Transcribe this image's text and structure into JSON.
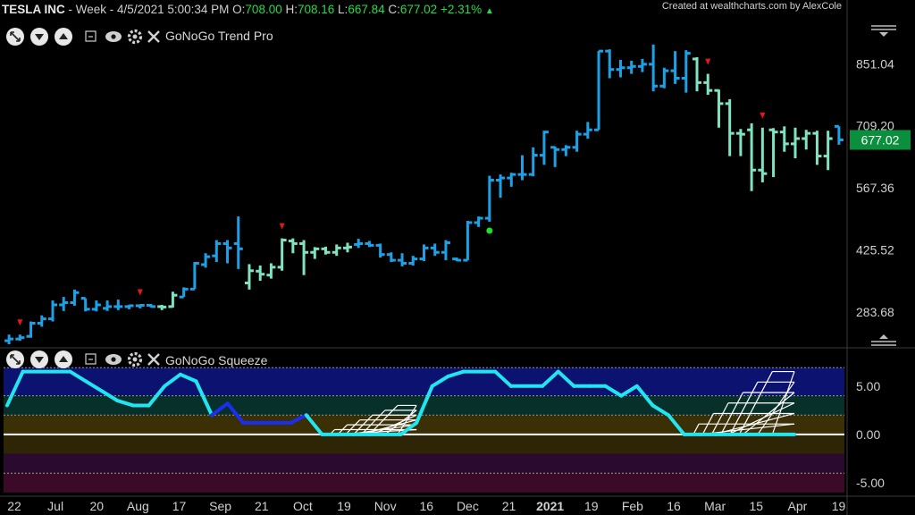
{
  "header": {
    "symbol": "TESLA INC",
    "interval": "Week",
    "datetime": "4/5/2021 5:00:34 PM",
    "open_label": "O:",
    "open": "708.00",
    "high_label": "H:",
    "high": "708.16",
    "low_label": "L:",
    "low": "667.84",
    "close_label": "C:",
    "close": "677.02",
    "change": "+2.31%",
    "change_icon": "triangle-up-icon"
  },
  "credit": "Created at wealthcharts.com by AlexCole",
  "panels": {
    "trend": {
      "title": "GoNoGo Trend Pro"
    },
    "squeeze": {
      "title": "GoNoGo Squeeze"
    }
  },
  "colors": {
    "background": "#000000",
    "go_strong": "#1da1e6",
    "go_weak": "#7fe3c1",
    "squeeze_line": "#21e6f0",
    "squeeze_low": "#1a2ef0",
    "last_price_bg": "#0a8f3c",
    "down_arrow": "#e51919",
    "dot": "#21e021"
  },
  "chart_data": [
    {
      "type": "ohlc",
      "interval": "Week",
      "ylim": [
        210,
        960
      ],
      "y_ticks": [
        "851.04",
        "709.20",
        "567.36",
        "425.52",
        "283.68"
      ],
      "last_price": "677.02",
      "x_ticks": [
        "22",
        "Jul",
        "20",
        "Aug",
        "17",
        "Sep",
        "21",
        "Oct",
        "19",
        "Nov",
        "16",
        "Dec",
        "21",
        "2021",
        "19",
        "Feb",
        "16",
        "Mar",
        "15",
        "Apr",
        "19"
      ],
      "bars": [
        {
          "o": 218,
          "h": 232,
          "l": 210,
          "c": 222,
          "color": "go_strong"
        },
        {
          "o": 222,
          "h": 232,
          "l": 218,
          "c": 225,
          "color": "go_strong"
        },
        {
          "o": 228,
          "h": 262,
          "l": 225,
          "c": 258,
          "color": "go_strong"
        },
        {
          "o": 258,
          "h": 276,
          "l": 250,
          "c": 268,
          "color": "go_strong"
        },
        {
          "o": 268,
          "h": 310,
          "l": 262,
          "c": 300,
          "color": "go_strong"
        },
        {
          "o": 300,
          "h": 318,
          "l": 286,
          "c": 305,
          "color": "go_strong"
        },
        {
          "o": 305,
          "h": 335,
          "l": 298,
          "c": 328,
          "color": "go_strong"
        },
        {
          "o": 315,
          "h": 315,
          "l": 285,
          "c": 290,
          "color": "go_strong"
        },
        {
          "o": 290,
          "h": 310,
          "l": 285,
          "c": 300,
          "color": "go_strong"
        },
        {
          "o": 292,
          "h": 310,
          "l": 286,
          "c": 296,
          "color": "go_strong"
        },
        {
          "o": 296,
          "h": 312,
          "l": 288,
          "c": 296,
          "color": "go_strong"
        },
        {
          "o": 296,
          "h": 300,
          "l": 290,
          "c": 298,
          "color": "go_strong"
        },
        {
          "o": 298,
          "h": 301,
          "l": 292,
          "c": 299,
          "color": "go_strong"
        },
        {
          "o": 299,
          "h": 302,
          "l": 294,
          "c": 296,
          "color": "go_strong"
        },
        {
          "o": 296,
          "h": 300,
          "l": 288,
          "c": 295,
          "color": "go_weak"
        },
        {
          "o": 296,
          "h": 330,
          "l": 294,
          "c": 322,
          "color": "go_weak"
        },
        {
          "o": 318,
          "h": 340,
          "l": 318,
          "c": 336,
          "color": "go_strong"
        },
        {
          "o": 336,
          "h": 398,
          "l": 336,
          "c": 395,
          "color": "go_strong"
        },
        {
          "o": 392,
          "h": 418,
          "l": 385,
          "c": 410,
          "color": "go_strong"
        },
        {
          "o": 412,
          "h": 448,
          "l": 398,
          "c": 440,
          "color": "go_strong"
        },
        {
          "o": 440,
          "h": 448,
          "l": 395,
          "c": 430,
          "color": "go_strong"
        },
        {
          "o": 440,
          "h": 502,
          "l": 382,
          "c": 428,
          "color": "go_strong"
        },
        {
          "o": 350,
          "h": 393,
          "l": 335,
          "c": 378,
          "color": "go_weak"
        },
        {
          "o": 377,
          "h": 390,
          "l": 355,
          "c": 370,
          "color": "go_weak"
        },
        {
          "o": 368,
          "h": 395,
          "l": 360,
          "c": 386,
          "color": "go_weak"
        },
        {
          "o": 386,
          "h": 452,
          "l": 378,
          "c": 448,
          "color": "go_weak"
        },
        {
          "o": 446,
          "h": 452,
          "l": 418,
          "c": 440,
          "color": "go_weak"
        },
        {
          "o": 440,
          "h": 448,
          "l": 368,
          "c": 420,
          "color": "go_weak"
        },
        {
          "o": 420,
          "h": 432,
          "l": 405,
          "c": 428,
          "color": "go_weak"
        },
        {
          "o": 428,
          "h": 433,
          "l": 415,
          "c": 420,
          "color": "go_weak"
        },
        {
          "o": 420,
          "h": 438,
          "l": 412,
          "c": 430,
          "color": "go_weak"
        },
        {
          "o": 430,
          "h": 442,
          "l": 420,
          "c": 432,
          "color": "go_weak"
        },
        {
          "o": 438,
          "h": 451,
          "l": 430,
          "c": 440,
          "color": "go_strong"
        },
        {
          "o": 440,
          "h": 446,
          "l": 432,
          "c": 436,
          "color": "go_strong"
        },
        {
          "o": 436,
          "h": 440,
          "l": 408,
          "c": 415,
          "color": "go_strong"
        },
        {
          "o": 415,
          "h": 420,
          "l": 398,
          "c": 402,
          "color": "go_strong"
        },
        {
          "o": 402,
          "h": 418,
          "l": 388,
          "c": 395,
          "color": "go_strong"
        },
        {
          "o": 395,
          "h": 412,
          "l": 390,
          "c": 405,
          "color": "go_strong"
        },
        {
          "o": 405,
          "h": 438,
          "l": 400,
          "c": 430,
          "color": "go_strong"
        },
        {
          "o": 430,
          "h": 440,
          "l": 412,
          "c": 420,
          "color": "go_strong"
        },
        {
          "o": 420,
          "h": 448,
          "l": 402,
          "c": 442,
          "color": "go_strong"
        },
        {
          "o": 405,
          "h": 408,
          "l": 400,
          "c": 402,
          "color": "go_strong"
        },
        {
          "o": 402,
          "h": 492,
          "l": 402,
          "c": 488,
          "color": "go_strong"
        },
        {
          "o": 488,
          "h": 502,
          "l": 478,
          "c": 498,
          "color": "go_strong"
        },
        {
          "o": 498,
          "h": 595,
          "l": 490,
          "c": 585,
          "color": "go_strong"
        },
        {
          "o": 585,
          "h": 598,
          "l": 545,
          "c": 590,
          "color": "go_strong"
        },
        {
          "o": 590,
          "h": 602,
          "l": 570,
          "c": 598,
          "color": "go_strong"
        },
        {
          "o": 598,
          "h": 642,
          "l": 585,
          "c": 598,
          "color": "go_strong"
        },
        {
          "o": 598,
          "h": 660,
          "l": 594,
          "c": 642,
          "color": "go_strong"
        },
        {
          "o": 642,
          "h": 698,
          "l": 620,
          "c": 695,
          "color": "go_strong"
        },
        {
          "o": 660,
          "h": 662,
          "l": 615,
          "c": 655,
          "color": "go_strong"
        },
        {
          "o": 655,
          "h": 665,
          "l": 640,
          "c": 660,
          "color": "go_strong"
        },
        {
          "o": 660,
          "h": 698,
          "l": 650,
          "c": 690,
          "color": "go_strong"
        },
        {
          "o": 690,
          "h": 718,
          "l": 680,
          "c": 700,
          "color": "go_strong"
        },
        {
          "o": 700,
          "h": 880,
          "l": 700,
          "c": 880,
          "color": "go_strong"
        },
        {
          "o": 880,
          "h": 884,
          "l": 818,
          "c": 838,
          "color": "go_strong"
        },
        {
          "o": 838,
          "h": 860,
          "l": 820,
          "c": 842,
          "color": "go_strong"
        },
        {
          "o": 842,
          "h": 858,
          "l": 828,
          "c": 845,
          "color": "go_strong"
        },
        {
          "o": 845,
          "h": 862,
          "l": 832,
          "c": 850,
          "color": "go_strong"
        },
        {
          "o": 850,
          "h": 895,
          "l": 788,
          "c": 800,
          "color": "go_strong"
        },
        {
          "o": 800,
          "h": 842,
          "l": 795,
          "c": 835,
          "color": "go_strong"
        },
        {
          "o": 835,
          "h": 880,
          "l": 805,
          "c": 818,
          "color": "go_strong"
        },
        {
          "o": 818,
          "h": 882,
          "l": 785,
          "c": 875,
          "color": "go_strong"
        },
        {
          "o": 862,
          "h": 866,
          "l": 788,
          "c": 808,
          "color": "go_weak"
        },
        {
          "o": 808,
          "h": 828,
          "l": 780,
          "c": 790,
          "color": "go_weak"
        },
        {
          "o": 790,
          "h": 792,
          "l": 705,
          "c": 760,
          "color": "go_weak"
        },
        {
          "o": 760,
          "h": 770,
          "l": 640,
          "c": 692,
          "color": "go_weak"
        },
        {
          "o": 692,
          "h": 702,
          "l": 640,
          "c": 690,
          "color": "go_weak"
        },
        {
          "o": 700,
          "h": 715,
          "l": 560,
          "c": 608,
          "color": "go_weak"
        },
        {
          "o": 608,
          "h": 705,
          "l": 580,
          "c": 600,
          "color": "go_weak"
        },
        {
          "o": 700,
          "h": 704,
          "l": 592,
          "c": 695,
          "color": "go_weak"
        },
        {
          "o": 695,
          "h": 708,
          "l": 650,
          "c": 668,
          "color": "go_weak"
        },
        {
          "o": 668,
          "h": 705,
          "l": 635,
          "c": 680,
          "color": "go_weak"
        },
        {
          "o": 680,
          "h": 700,
          "l": 655,
          "c": 692,
          "color": "go_weak"
        },
        {
          "o": 692,
          "h": 698,
          "l": 620,
          "c": 640,
          "color": "go_weak"
        },
        {
          "o": 640,
          "h": 698,
          "l": 608,
          "c": 680,
          "color": "go_weak"
        },
        {
          "o": 708,
          "h": 708,
          "l": 666,
          "c": 677,
          "color": "go_strong"
        }
      ],
      "down_arrows_at": [
        1,
        12,
        25,
        64,
        69
      ],
      "dot_at": 44
    },
    {
      "type": "line",
      "ylim": [
        -6.2,
        7.2
      ],
      "y_ticks": [
        "5.00",
        "0.00",
        "-5.00"
      ],
      "series": [
        {
          "values": [
            3.0,
            6.5,
            6.5,
            6.5,
            6.5,
            5.5,
            4.5,
            3.5,
            3.0,
            3.0,
            5.0,
            6.2,
            5.5,
            2.0,
            3.2,
            1.2,
            1.2,
            1.2,
            1.2,
            2.0,
            0.0,
            0.0,
            0.0,
            0.0,
            0.0,
            0.0,
            1.2,
            5.0,
            6.0,
            6.5,
            6.5,
            6.5,
            5.0,
            5.0,
            5.0,
            6.5,
            5.0,
            5.0,
            5.0,
            4.0,
            5.0,
            3.0,
            2.0,
            0.0,
            0.0,
            0.0,
            0.0,
            0.0,
            0.0,
            0.0,
            0.0
          ],
          "low_segment": [
            13,
            19
          ]
        }
      ],
      "nets": [
        {
          "from": 20,
          "to": 26,
          "peak": 3.0
        },
        {
          "from": 43,
          "to": 50,
          "peak": 6.5
        }
      ]
    }
  ]
}
